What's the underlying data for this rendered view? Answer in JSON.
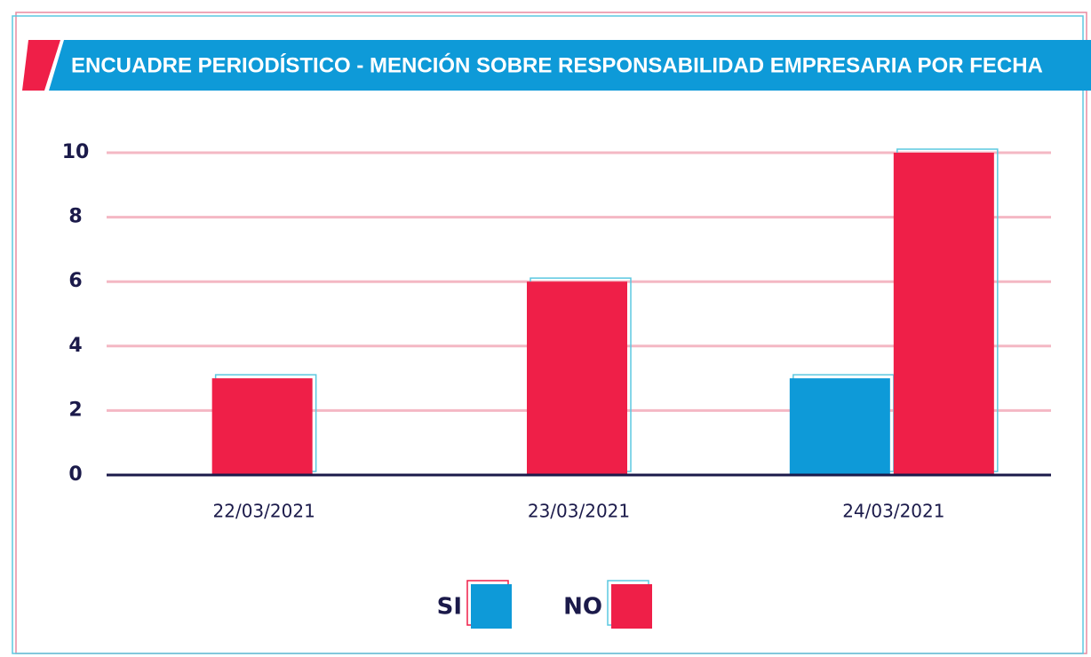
{
  "chart_data": {
    "type": "bar",
    "title": "ENCUADRE PERIODÍSTICO - MENCIÓN SOBRE RESPONSABILIDAD EMPRESARIA POR FECHA",
    "categories": [
      "22/03/2021",
      "23/03/2021",
      "24/03/2021"
    ],
    "series": [
      {
        "name": "SI",
        "color": "#0e9ad8",
        "values": [
          0,
          0,
          3
        ]
      },
      {
        "name": "NO",
        "color": "#ef1f48",
        "values": [
          3,
          6,
          10
        ]
      }
    ],
    "ylim": [
      0,
      10
    ],
    "yticks": [
      0,
      2,
      4,
      6,
      8,
      10
    ],
    "grid": true
  }
}
